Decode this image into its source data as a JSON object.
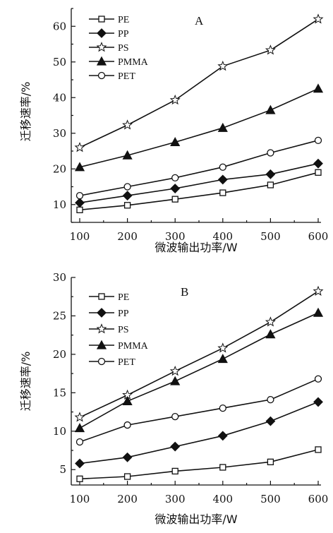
{
  "chart_data": [
    {
      "type": "line",
      "panel_label": "A",
      "xlabel": "微波输出功率/W",
      "ylabel": "迁移速率/%",
      "x": [
        100,
        200,
        300,
        400,
        500,
        600
      ],
      "xticks": [
        "100",
        "200",
        "300",
        "400",
        "500",
        "600"
      ],
      "xlim": [
        100,
        600
      ],
      "yticks": [
        "10",
        "20",
        "30",
        "40",
        "50",
        "60"
      ],
      "ylim": [
        5,
        65
      ],
      "legend_position": "top-left",
      "series": [
        {
          "name": "PE",
          "marker": "square-open",
          "values": [
            8.5,
            9.8,
            11.5,
            13.3,
            15.5,
            19.0
          ]
        },
        {
          "name": "PP",
          "marker": "diamond-filled",
          "values": [
            10.5,
            12.5,
            14.5,
            17.0,
            18.5,
            21.5
          ]
        },
        {
          "name": "PS",
          "marker": "star-open",
          "values": [
            26.0,
            32.3,
            39.3,
            48.8,
            53.3,
            62.0
          ]
        },
        {
          "name": "PMMA",
          "marker": "triangle-filled",
          "values": [
            20.5,
            23.8,
            27.5,
            31.5,
            36.5,
            42.5
          ]
        },
        {
          "name": "PET",
          "marker": "circle-open",
          "values": [
            12.5,
            15.0,
            17.5,
            20.5,
            24.5,
            28.0
          ]
        }
      ]
    },
    {
      "type": "line",
      "panel_label": "B",
      "xlabel": "微波输出功率/W",
      "ylabel": "迁移速率/%",
      "x": [
        100,
        200,
        300,
        400,
        500,
        600
      ],
      "xticks": [
        "100",
        "200",
        "300",
        "400",
        "500",
        "600"
      ],
      "xlim": [
        100,
        600
      ],
      "yticks": [
        "5",
        "10",
        "15",
        "20",
        "25",
        "30"
      ],
      "ylim": [
        3,
        30
      ],
      "legend_position": "top-left",
      "series": [
        {
          "name": "PE",
          "marker": "square-open",
          "values": [
            3.8,
            4.1,
            4.8,
            5.3,
            6.0,
            7.6
          ]
        },
        {
          "name": "PP",
          "marker": "diamond-filled",
          "values": [
            5.8,
            6.6,
            8.0,
            9.4,
            11.3,
            13.8
          ]
        },
        {
          "name": "PS",
          "marker": "star-open",
          "values": [
            11.8,
            14.7,
            17.8,
            20.8,
            24.2,
            28.2
          ]
        },
        {
          "name": "PMMA",
          "marker": "triangle-filled",
          "values": [
            10.4,
            13.9,
            16.5,
            19.4,
            22.6,
            25.4
          ]
        },
        {
          "name": "PET",
          "marker": "circle-open",
          "values": [
            8.6,
            10.8,
            11.9,
            13.0,
            14.1,
            16.8
          ]
        }
      ]
    }
  ]
}
